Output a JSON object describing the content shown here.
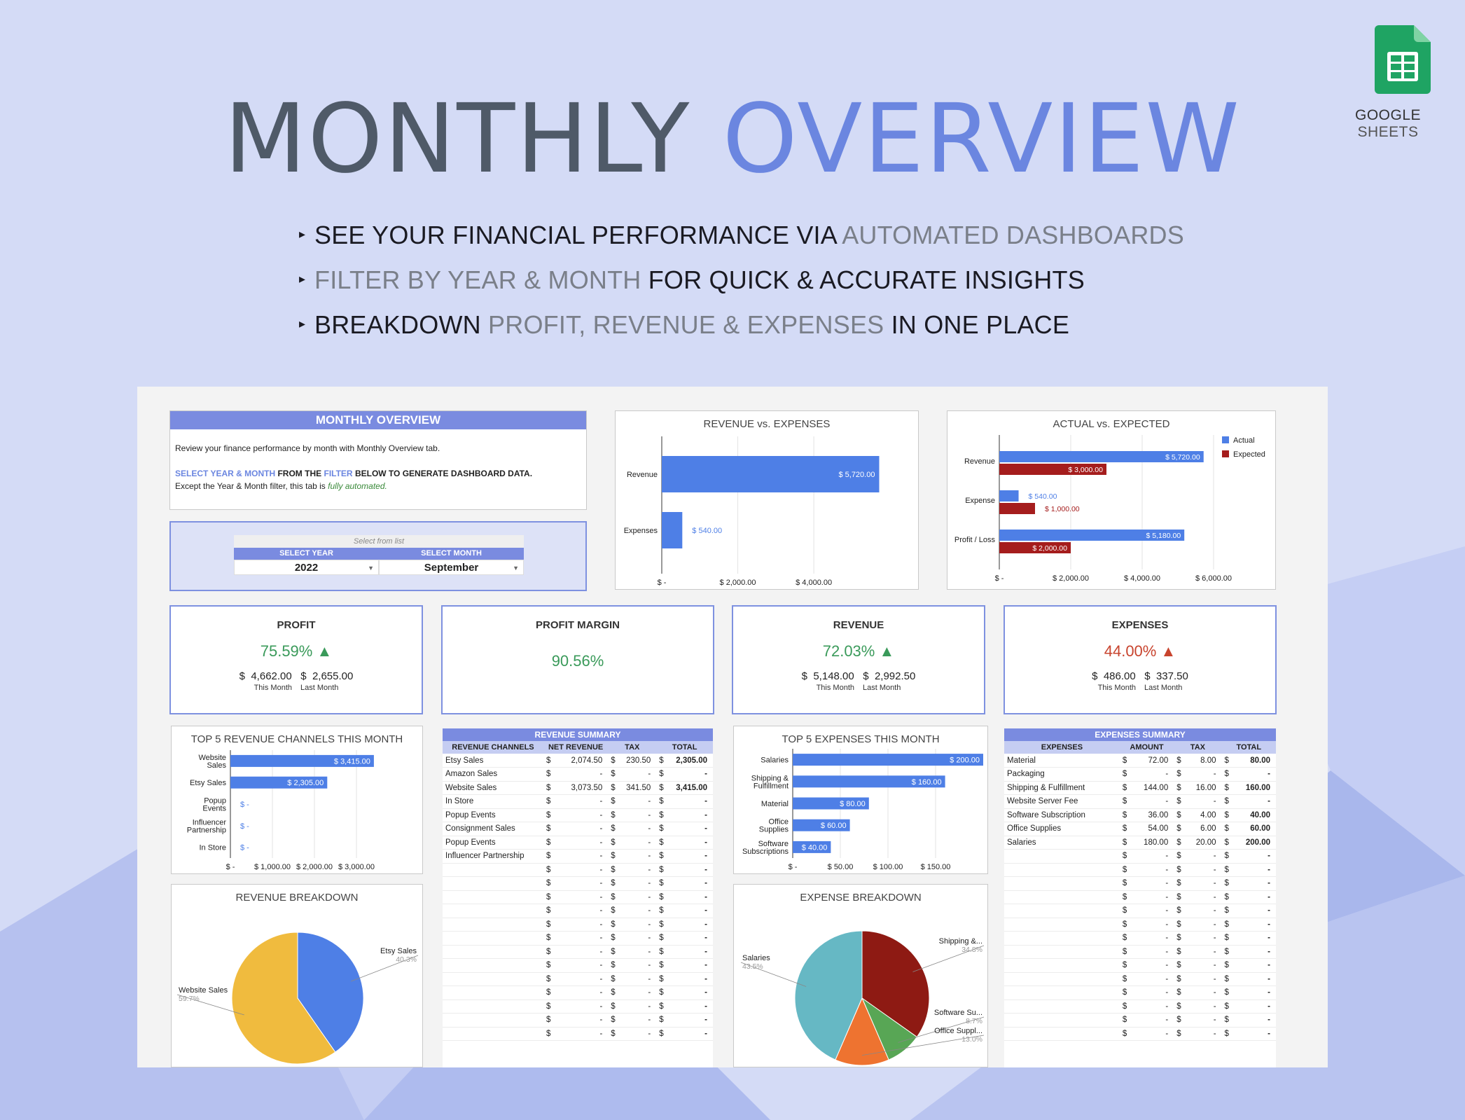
{
  "title": {
    "part1": "MONTHLY",
    "part2": "OVERVIEW"
  },
  "logo": {
    "icon": "google-sheets-icon",
    "caption_a": "GOOGLE",
    "caption_b": "SHEETS"
  },
  "bullets": [
    {
      "a": "SEE YOUR FINANCIAL PERFORMANCE VIA",
      "b": "AUTOMATED DASHBOARDS",
      "c": ""
    },
    {
      "a": "",
      "b": "FILTER BY YEAR & MONTH",
      "c": "FOR QUICK & ACCURATE INSIGHTS"
    },
    {
      "a": "BREAKDOWN",
      "b": "PROFIT, REVENUE & EXPENSES",
      "c": "IN ONE PLACE"
    }
  ],
  "overview": {
    "header": "MONTHLY OVERVIEW",
    "line1": "Review your finance performance by month with Monthly Overview tab.",
    "line2a": "SELECT YEAR & MONTH",
    "line2b": "FROM THE",
    "line2c": "FILTER",
    "line2d": "BELOW TO GENERATE DASHBOARD DATA.",
    "line3a": "Except the Year & Month filter, this tab is",
    "line3b": "fully automated."
  },
  "filter": {
    "hint": "Select from list",
    "year_label": "SELECT YEAR",
    "month_label": "SELECT MONTH",
    "year": "2022",
    "month": "September"
  },
  "kpis": {
    "profit": {
      "title": "PROFIT",
      "pct": "75.59% ▲",
      "cur1": "$",
      "v1": "4,662.00",
      "cur2": "$",
      "v2": "2,655.00",
      "l1": "This Month",
      "l2": "Last Month"
    },
    "margin": {
      "title": "PROFIT MARGIN",
      "pct": "90.56%"
    },
    "revenue": {
      "title": "REVENUE",
      "pct": "72.03% ▲",
      "cur1": "$",
      "v1": "5,148.00",
      "cur2": "$",
      "v2": "2,992.50",
      "l1": "This Month",
      "l2": "Last Month"
    },
    "expenses": {
      "title": "EXPENSES",
      "pct": "44.00% ▲",
      "cur1": "$",
      "v1": "486.00",
      "cur2": "$",
      "v2": "337.50",
      "l1": "This Month",
      "l2": "Last Month"
    }
  },
  "colors": {
    "accent": "#6b86e0",
    "header": "#7a8be0",
    "bar_blue": "#4e7fe6",
    "bar_red": "#a51d1d",
    "green": "#3a9a5a",
    "red": "#c8442e"
  },
  "chart_data": [
    {
      "type": "bar",
      "title": "REVENUE vs. EXPENSES",
      "categories": [
        "Revenue",
        "Expenses"
      ],
      "values": [
        5720,
        540
      ],
      "data_labels": [
        "$ 5,720.00",
        "$ 540.00"
      ],
      "xticks": [
        "$ -",
        "$ 2,000.00",
        "$ 4,000.00"
      ],
      "xlim": [
        0,
        6000
      ]
    },
    {
      "type": "bar",
      "title": "ACTUAL vs. EXPECTED",
      "categories": [
        "Revenue",
        "Expense",
        "Profit / Loss"
      ],
      "series": [
        {
          "name": "Actual",
          "values": [
            5720,
            540,
            5180
          ],
          "labels": [
            "$ 5,720.00",
            "$ 540.00",
            "$ 5,180.00"
          ]
        },
        {
          "name": "Expected",
          "values": [
            3000,
            1000,
            2000
          ],
          "labels": [
            "$ 3,000.00",
            "$ 1,000.00",
            "$ 2,000.00"
          ]
        }
      ],
      "xticks": [
        "$ -",
        "$ 2,000.00",
        "$ 4,000.00",
        "$ 6,000.00"
      ],
      "xlim": [
        0,
        6000
      ],
      "legend": "top-right"
    },
    {
      "type": "bar",
      "title": "TOP 5 REVENUE CHANNELS THIS MONTH",
      "categories": [
        "Website Sales",
        "Etsy Sales",
        "Popup Events",
        "Influencer Partnership",
        "In Store"
      ],
      "values": [
        3415,
        2305,
        0,
        0,
        0
      ],
      "data_labels": [
        "$ 3,415.00",
        "$ 2,305.00",
        "$ -",
        "$ -",
        "$ -"
      ],
      "xticks": [
        "$ -",
        "$ 1,000.00",
        "$ 2,000.00",
        "$ 3,000.00"
      ],
      "xlim": [
        0,
        4000
      ]
    },
    {
      "type": "bar",
      "title": "TOP 5 EXPENSES THIS MONTH",
      "categories": [
        "Salaries",
        "Shipping & Fulfillment",
        "Material",
        "Office Supplies",
        "Software Subscriptions"
      ],
      "values": [
        200,
        160,
        80,
        60,
        40
      ],
      "data_labels": [
        "$ 200.00",
        "$ 160.00",
        "$ 80.00",
        "$ 60.00",
        "$ 40.00"
      ],
      "xticks": [
        "$ -",
        "$ 50.00",
        "$ 100.00",
        "$ 150.00"
      ],
      "xlim": [
        0,
        200
      ]
    },
    {
      "type": "pie",
      "title": "REVENUE BREAKDOWN",
      "slices": [
        {
          "label": "Etsy Sales",
          "pct": "40.3%",
          "value": 40.3,
          "color": "#4e7fe6"
        },
        {
          "label": "Website Sales",
          "pct": "59.7%",
          "value": 59.7,
          "color": "#f0bb3e"
        }
      ]
    },
    {
      "type": "pie",
      "title": "EXPENSE BREAKDOWN",
      "slices": [
        {
          "label": "Shipping &...",
          "pct": "34.8%",
          "value": 34.8,
          "color": "#8e1a13"
        },
        {
          "label": "Software Su...",
          "pct": "8.7%",
          "value": 8.7,
          "color": "#58a655"
        },
        {
          "label": "Office Suppl...",
          "pct": "13.0%",
          "value": 13.0,
          "color": "#ee7330"
        },
        {
          "label": "Salaries",
          "pct": "43.5%",
          "value": 43.5,
          "color": "#66b8c4"
        }
      ]
    }
  ],
  "revenue_summary": {
    "title": "REVENUE SUMMARY",
    "headers": [
      "REVENUE CHANNELS",
      "NET REVENUE",
      "TAX",
      "TOTAL"
    ],
    "rows": [
      [
        "Etsy Sales",
        "2,074.50",
        "230.50",
        "2,305.00"
      ],
      [
        "Amazon Sales",
        "-",
        "-",
        "-"
      ],
      [
        "Website Sales",
        "3,073.50",
        "341.50",
        "3,415.00"
      ],
      [
        "In Store",
        "-",
        "-",
        "-"
      ],
      [
        "Popup Events",
        "-",
        "-",
        "-"
      ],
      [
        "Consignment Sales",
        "-",
        "-",
        "-"
      ],
      [
        "Popup Events",
        "-",
        "-",
        "-"
      ],
      [
        "Influencer Partnership",
        "-",
        "-",
        "-"
      ],
      [
        "",
        "-",
        "-",
        "-"
      ],
      [
        "",
        "-",
        "-",
        "-"
      ],
      [
        "",
        "-",
        "-",
        "-"
      ],
      [
        "",
        "-",
        "-",
        "-"
      ],
      [
        "",
        "-",
        "-",
        "-"
      ],
      [
        "",
        "-",
        "-",
        "-"
      ],
      [
        "",
        "-",
        "-",
        "-"
      ],
      [
        "",
        "-",
        "-",
        "-"
      ],
      [
        "",
        "-",
        "-",
        "-"
      ],
      [
        "",
        "-",
        "-",
        "-"
      ],
      [
        "",
        "-",
        "-",
        "-"
      ],
      [
        "",
        "-",
        "-",
        "-"
      ],
      [
        "",
        "-",
        "-",
        "-"
      ]
    ]
  },
  "expenses_summary": {
    "title": "EXPENSES SUMMARY",
    "headers": [
      "EXPENSES",
      "AMOUNT",
      "TAX",
      "TOTAL"
    ],
    "rows": [
      [
        "Material",
        "72.00",
        "8.00",
        "80.00"
      ],
      [
        "Packaging",
        "-",
        "-",
        "-"
      ],
      [
        "Shipping & Fulfillment",
        "144.00",
        "16.00",
        "160.00"
      ],
      [
        "Website Server Fee",
        "-",
        "-",
        "-"
      ],
      [
        "Software Subscription",
        "36.00",
        "4.00",
        "40.00"
      ],
      [
        "Office Supplies",
        "54.00",
        "6.00",
        "60.00"
      ],
      [
        "Salaries",
        "180.00",
        "20.00",
        "200.00"
      ],
      [
        "",
        "-",
        "-",
        "-"
      ],
      [
        "",
        "-",
        "-",
        "-"
      ],
      [
        "",
        "-",
        "-",
        "-"
      ],
      [
        "",
        "-",
        "-",
        "-"
      ],
      [
        "",
        "-",
        "-",
        "-"
      ],
      [
        "",
        "-",
        "-",
        "-"
      ],
      [
        "",
        "-",
        "-",
        "-"
      ],
      [
        "",
        "-",
        "-",
        "-"
      ],
      [
        "",
        "-",
        "-",
        "-"
      ],
      [
        "",
        "-",
        "-",
        "-"
      ],
      [
        "",
        "-",
        "-",
        "-"
      ],
      [
        "",
        "-",
        "-",
        "-"
      ],
      [
        "",
        "-",
        "-",
        "-"
      ],
      [
        "",
        "-",
        "-",
        "-"
      ]
    ]
  }
}
